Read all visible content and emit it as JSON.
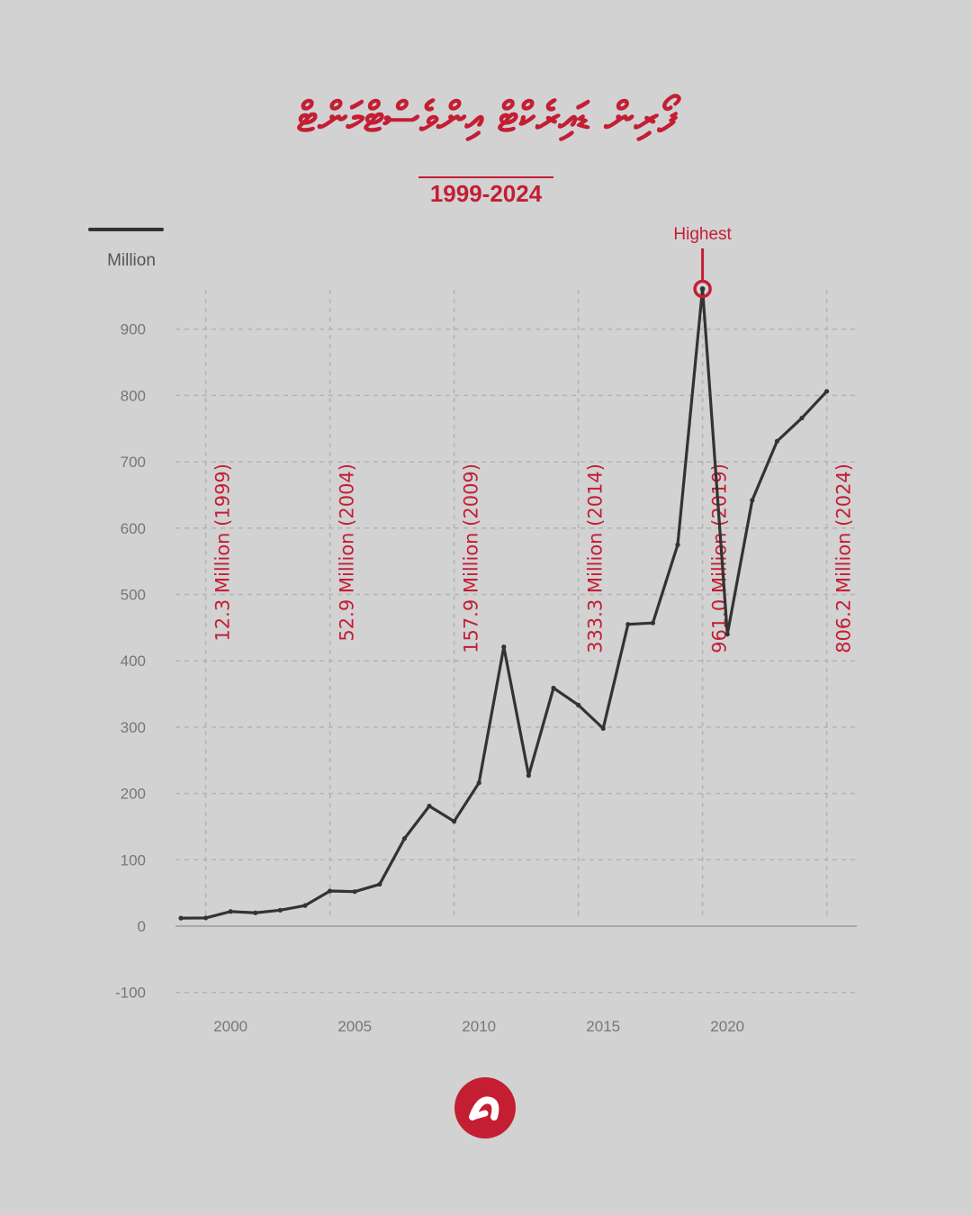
{
  "header": {
    "title": "ފޯރިން ޑައިރެކްޓް އިންވެސްޓްމަންޓް",
    "subtitle": "1999-2024"
  },
  "logo": {
    "name": "brand-logo-icon",
    "color": "#c41e33"
  },
  "chart_data": {
    "type": "line",
    "ylabel": "Million",
    "xlabel": "",
    "ylim": [
      -100,
      900
    ],
    "y_ticks": [
      -100,
      0,
      100,
      200,
      300,
      400,
      500,
      600,
      700,
      800,
      900
    ],
    "x_ticks": [
      2000,
      2005,
      2010,
      2015,
      2020
    ],
    "grid": true,
    "line_color": "#333333",
    "accent_color": "#c41e33",
    "series": [
      {
        "x": [
          1998,
          1999,
          2000,
          2001,
          2002,
          2003,
          2004,
          2005,
          2006,
          2007,
          2008,
          2009,
          2010,
          2011,
          2012,
          2013,
          2014,
          2015,
          2016,
          2017,
          2018,
          2019,
          2020,
          2021,
          2022,
          2023,
          2024
        ],
        "values": [
          12,
          12.3,
          22,
          20,
          24,
          31,
          52.9,
          52,
          63,
          132,
          181,
          157.9,
          216,
          421,
          227,
          359,
          333.3,
          298,
          455,
          457,
          575,
          961.0,
          440,
          642,
          731,
          766,
          806.2
        ]
      }
    ],
    "annotations": [
      {
        "x": 1999,
        "label": "12.3 Million (1999)"
      },
      {
        "x": 2004,
        "label": "52.9 Million (2004)"
      },
      {
        "x": 2009,
        "label": "157.9 Million (2009)"
      },
      {
        "x": 2014,
        "label": "333.3 Million (2014)"
      },
      {
        "x": 2019,
        "label": "961.0 Million (2019)"
      },
      {
        "x": 2024,
        "label": "806.2 Million (2024)"
      }
    ],
    "highlight": {
      "x": 2019,
      "label": "Highest"
    }
  }
}
